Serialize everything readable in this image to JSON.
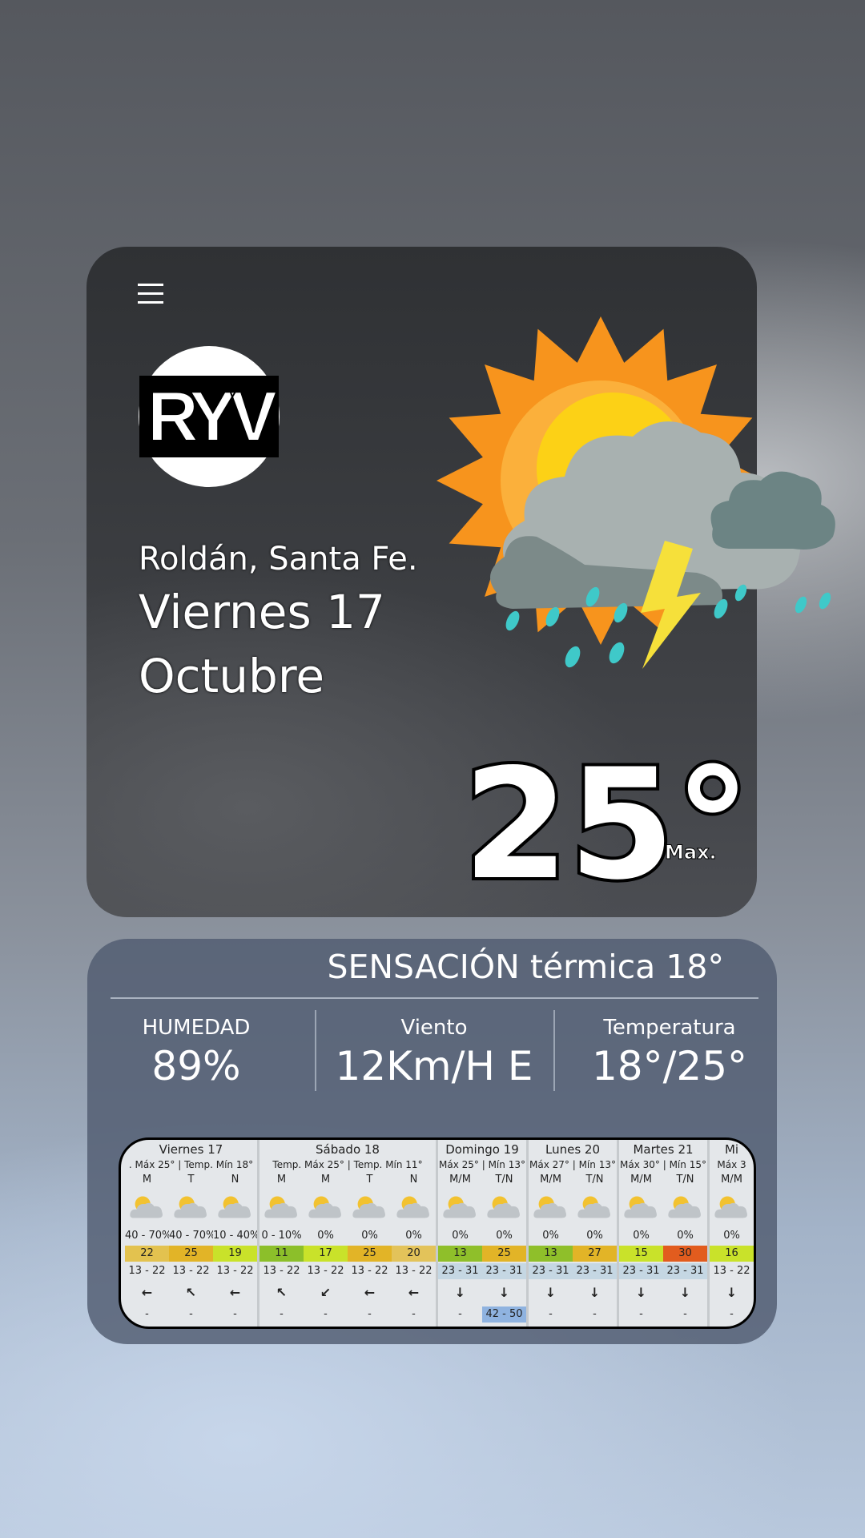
{
  "header": {
    "logo": "RYV",
    "location": "Roldán, Santa Fe.",
    "date_line1": "Viernes 17",
    "date_line2": "Octubre",
    "temperature": "25°",
    "temperature_note": "Max."
  },
  "details": {
    "feels_like": "SENSACIÓN térmica 18°",
    "stats": [
      {
        "label": "HUMEDAD",
        "value": "89%"
      },
      {
        "label": "Viento",
        "value": "12Km/H E"
      },
      {
        "label": "Temperatura",
        "value": "18°/25°"
      }
    ]
  },
  "forecast": {
    "days": [
      {
        "name": "Viernes 17",
        "summary": ". Máx 25° | Temp. Mín 18°",
        "periods": [
          {
            "label": "M",
            "rain": "40 - 70%",
            "temp": "22",
            "temp_color": "#e3c24f",
            "wind": "13 - 22",
            "direction": "←",
            "gust": "-"
          },
          {
            "label": "T",
            "rain": "40 - 70%",
            "temp": "25",
            "temp_color": "#e2b427",
            "wind": "13 - 22",
            "direction": "↖",
            "gust": "-"
          },
          {
            "label": "N",
            "rain": "10 - 40%",
            "temp": "19",
            "temp_color": "#c9e22a",
            "wind": "13 - 22",
            "direction": "←",
            "gust": "-"
          }
        ]
      },
      {
        "name": "Sábado 18",
        "summary": "Temp. Máx 25° | Temp. Mín 11°",
        "periods": [
          {
            "label": "M",
            "rain": "0 - 10%",
            "temp": "11",
            "temp_color": "#8cbf2a",
            "wind": "13 - 22",
            "direction": "↖",
            "gust": "-"
          },
          {
            "label": "M",
            "rain": "0%",
            "temp": "17",
            "temp_color": "#c9e22a",
            "wind": "13 - 22",
            "direction": "↙",
            "gust": "-"
          },
          {
            "label": "T",
            "rain": "0%",
            "temp": "25",
            "temp_color": "#e2b427",
            "wind": "13 - 22",
            "direction": "←",
            "gust": "-"
          },
          {
            "label": "N",
            "rain": "0%",
            "temp": "20",
            "temp_color": "#e3c35a",
            "wind": "13 - 22",
            "direction": "←",
            "gust": "-"
          }
        ]
      },
      {
        "name": "Domingo 19",
        "summary": "Máx 25° | Mín 13°",
        "wind_color": "#c5d7e3",
        "periods": [
          {
            "label": "M/M",
            "rain": "0%",
            "temp": "13",
            "temp_color": "#8fbf2a",
            "wind": "23 - 31",
            "direction": "↓",
            "gust": "-"
          },
          {
            "label": "T/N",
            "rain": "0%",
            "temp": "25",
            "temp_color": "#e2b427",
            "wind": "23 - 31",
            "direction": "↓",
            "gust": "42 - 50",
            "gust_color": "#8fb3e0"
          }
        ]
      },
      {
        "name": "Lunes 20",
        "summary": "Máx 27° | Mín 13°",
        "wind_color": "#c5d7e3",
        "periods": [
          {
            "label": "M/M",
            "rain": "0%",
            "temp": "13",
            "temp_color": "#8fbf2a",
            "wind": "23 - 31",
            "direction": "↓",
            "gust": "-"
          },
          {
            "label": "T/N",
            "rain": "0%",
            "temp": "27",
            "temp_color": "#e2b427",
            "wind": "23 - 31",
            "direction": "↓",
            "gust": "-"
          }
        ]
      },
      {
        "name": "Martes 21",
        "summary": "Máx 30° | Mín 15°",
        "wind_color": "#c5d7e3",
        "periods": [
          {
            "label": "M/M",
            "rain": "0%",
            "temp": "15",
            "temp_color": "#c9e22a",
            "wind": "23 - 31",
            "direction": "↓",
            "gust": "-"
          },
          {
            "label": "T/N",
            "rain": "0%",
            "temp": "30",
            "temp_color": "#e25c1e",
            "wind": "23 - 31",
            "direction": "↓",
            "gust": "-"
          }
        ]
      },
      {
        "name": "Mi",
        "summary": "Máx 3",
        "periods": [
          {
            "label": "M/M",
            "rain": "0%",
            "temp": "16",
            "temp_color": "#c9e22a",
            "wind": "13 - 22",
            "direction": "↓",
            "gust": "-"
          }
        ]
      }
    ]
  }
}
